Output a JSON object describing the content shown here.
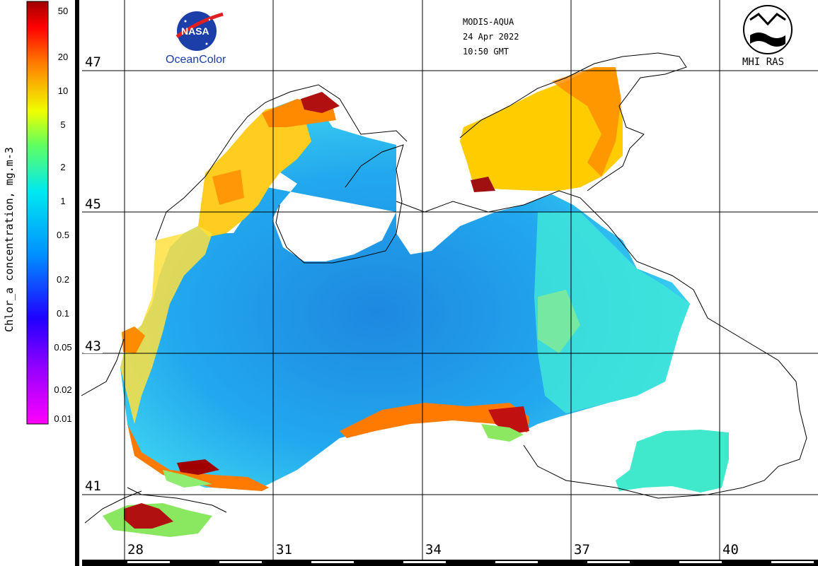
{
  "product": {
    "sensor": "MODIS-AQUA",
    "date": "24 Apr 2022",
    "time": "10:50 GMT"
  },
  "logos": {
    "left_text": "OceanColor",
    "left_badge": "NASA",
    "right_text": "MHI RAS"
  },
  "colorbar": {
    "title": "Chlor_a concentration, mg.m-3",
    "ticks": [
      "50",
      "20",
      "10",
      "5",
      "2",
      "1",
      "0.5",
      "0.2",
      "0.1",
      "0.05",
      "0.02",
      "0.01"
    ],
    "scale": "log",
    "colors": [
      "#ff00ff",
      "#8000ff",
      "#0000ff",
      "#0080ff",
      "#00e0ff",
      "#40ff80",
      "#ffff00",
      "#ff8000",
      "#ff0000",
      "#a00000"
    ]
  },
  "grid": {
    "latitudes": [
      "47",
      "45",
      "43",
      "41"
    ],
    "longitudes": [
      "28",
      "31",
      "34",
      "37",
      "40"
    ]
  },
  "palette": {
    "land": "#ffffff",
    "coast": "#000000",
    "deep_sea": "#1e90e6",
    "mid_sea": "#32c8f0",
    "shelf": "#78e678",
    "bloom": "#ffc800",
    "high": "#ff6a00",
    "very_high": "#b40000"
  }
}
